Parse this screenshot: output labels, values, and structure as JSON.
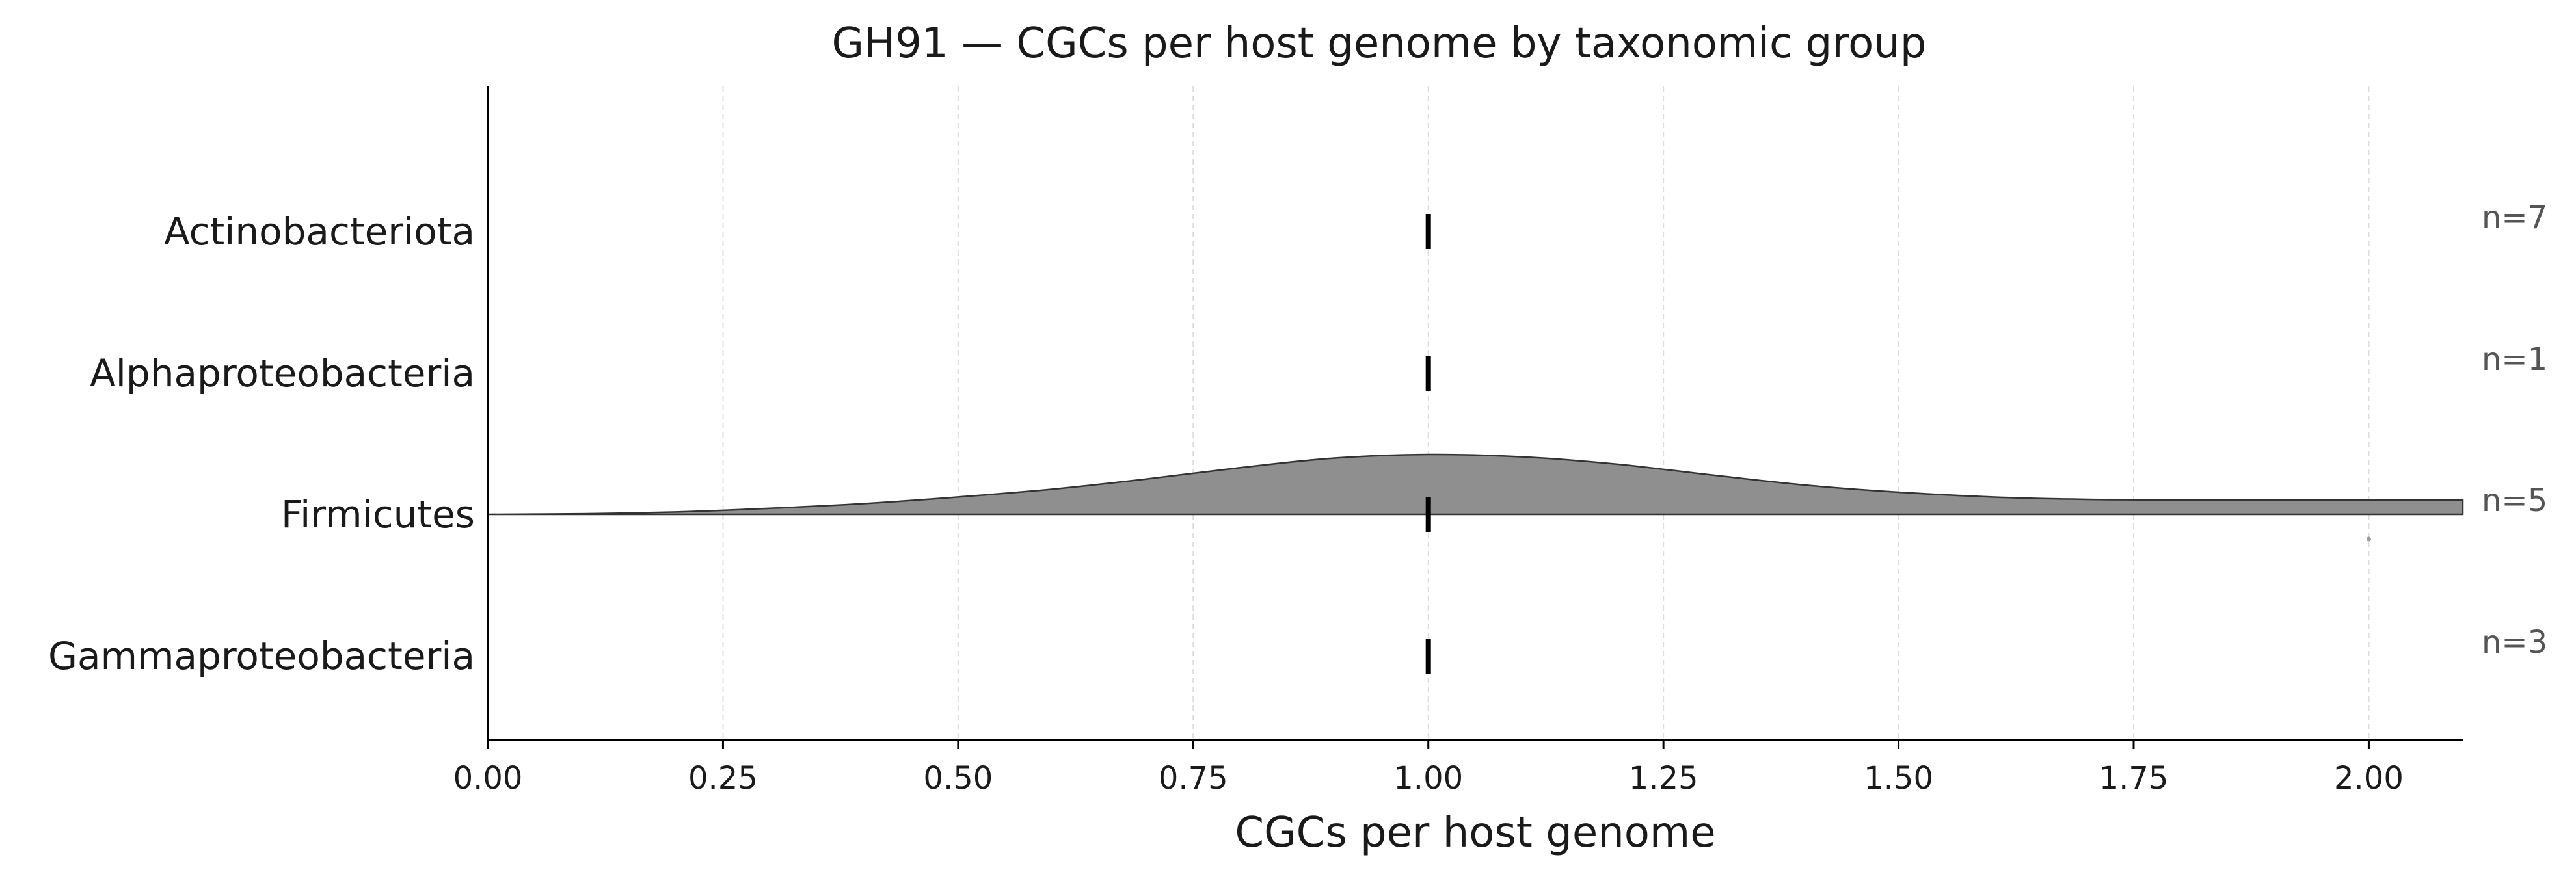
{
  "chart_data": {
    "type": "ridgeline",
    "title": "GH91 — CGCs per host genome by taxonomic group",
    "xlabel": "CGCs per host genome",
    "ylabel": "",
    "xlim": [
      0,
      2.1
    ],
    "xticks": [
      0.0,
      0.25,
      0.5,
      0.75,
      1.0,
      1.25,
      1.5,
      1.75,
      2.0
    ],
    "xtick_labels": [
      "0.00",
      "0.25",
      "0.50",
      "0.75",
      "1.00",
      "1.25",
      "1.50",
      "1.75",
      "2.00"
    ],
    "grid": "vertical dashed",
    "colors": {
      "density_fill": "#8f8f8f",
      "density_edge": "#333333",
      "median": "#000000",
      "outlier": "#9a9a9a",
      "grid": "#dddddd",
      "n_label": "#555555"
    },
    "groups": [
      {
        "name": "Actinobacteriota",
        "n_label": "n=7",
        "median": 1.0,
        "density": null,
        "points": []
      },
      {
        "name": "Alphaproteobacteria",
        "n_label": "n=1",
        "median": 1.0,
        "density": null,
        "points": []
      },
      {
        "name": "Firmicutes",
        "n_label": "n=5",
        "median": 1.0,
        "density": {
          "x": [
            0.0,
            0.1,
            0.2,
            0.3,
            0.4,
            0.5,
            0.6,
            0.7,
            0.8,
            0.9,
            1.0,
            1.1,
            1.2,
            1.3,
            1.4,
            1.5,
            1.6,
            1.7,
            1.8,
            1.9,
            2.0,
            2.1
          ],
          "y": [
            0.0,
            0.01,
            0.04,
            0.1,
            0.18,
            0.29,
            0.42,
            0.59,
            0.78,
            0.94,
            1.0,
            0.96,
            0.84,
            0.66,
            0.49,
            0.37,
            0.29,
            0.25,
            0.24,
            0.24,
            0.24,
            0.24
          ]
        },
        "points": [
          2.0
        ]
      },
      {
        "name": "Gammaproteobacteria",
        "n_label": "n=3",
        "median": 1.0,
        "density": null,
        "points": []
      }
    ]
  }
}
